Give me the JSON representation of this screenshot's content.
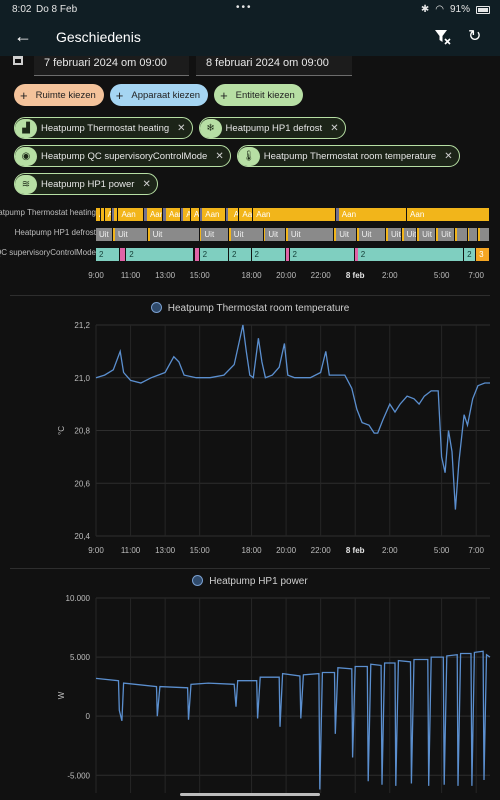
{
  "statusbar": {
    "time": "8:02",
    "date": "Do 8 Feb",
    "dots": "•••",
    "battery": "91%"
  },
  "appbar": {
    "title": "Geschiedenis"
  },
  "dates": {
    "start": "7 februari 2024 om 09:00",
    "end": "8 februari 2024 om 09:00"
  },
  "pickers": {
    "area": "Ruimte kiezen",
    "device": "Apparaat kiezen",
    "entity": "Entiteit kiezen"
  },
  "selected": [
    {
      "label": "Heatpump Thermostat heating",
      "icon": "thermostat-icon"
    },
    {
      "label": "Heatpump HP1 defrost",
      "icon": "snowflake-icon"
    },
    {
      "label": "Heatpump QC supervisoryControlMode",
      "icon": "eye-icon"
    },
    {
      "label": "Heatpump Thermostat room temperature",
      "icon": "thermometer-icon"
    },
    {
      "label": "Heatpump HP1 power",
      "icon": "heat-wave-icon"
    }
  ],
  "colors": {
    "aan": "#f2b51a",
    "uit": "#8a8a8a",
    "mode2": "#7fcfc0",
    "mode3": "#f5a623",
    "pink": "#e063a6",
    "line": "#5b8fcf",
    "gap": "#6f6f8f"
  },
  "timeline": {
    "rows": [
      {
        "label": "Heatpump Thermostat heating",
        "segments": [
          {
            "s": 0.0,
            "e": 0.28,
            "c": "aan",
            "t": "Aan"
          },
          {
            "s": 0.28,
            "e": 0.5,
            "c": "aan",
            "t": "Aan"
          },
          {
            "s": 0.5,
            "e": 0.9,
            "c": "aan",
            "t": "Aan"
          },
          {
            "s": 0.9,
            "e": 1.05,
            "c": "gap",
            "t": ""
          },
          {
            "s": 1.05,
            "e": 1.3,
            "c": "aan",
            "t": "Aan"
          },
          {
            "s": 1.3,
            "e": 2.8,
            "c": "aan",
            "t": "Aan"
          },
          {
            "s": 2.8,
            "e": 2.95,
            "c": "gap",
            "t": ""
          },
          {
            "s": 2.95,
            "e": 3.9,
            "c": "aan",
            "t": "Aan"
          },
          {
            "s": 3.9,
            "e": 4.05,
            "c": "gap",
            "t": ""
          },
          {
            "s": 4.05,
            "e": 4.9,
            "c": "aan",
            "t": "Aan"
          },
          {
            "s": 4.9,
            "e": 5.05,
            "c": "gap",
            "t": ""
          },
          {
            "s": 5.05,
            "e": 5.5,
            "c": "aan",
            "t": "Aan"
          },
          {
            "s": 5.5,
            "e": 6.0,
            "c": "aan",
            "t": "Aan"
          },
          {
            "s": 6.0,
            "e": 6.15,
            "c": "gap",
            "t": ""
          },
          {
            "s": 6.15,
            "e": 7.5,
            "c": "aan",
            "t": "Aan"
          },
          {
            "s": 7.5,
            "e": 7.65,
            "c": "gap",
            "t": ""
          },
          {
            "s": 7.65,
            "e": 7.8,
            "c": "aan",
            "t": "Aan"
          },
          {
            "s": 7.8,
            "e": 8.3,
            "c": "aan",
            "t": "Aan"
          },
          {
            "s": 8.3,
            "e": 9.1,
            "c": "aan",
            "t": "Aan"
          },
          {
            "s": 9.1,
            "e": 13.9,
            "c": "aan",
            "t": "Aan"
          },
          {
            "s": 13.9,
            "e": 14.05,
            "c": "gap",
            "t": ""
          },
          {
            "s": 14.05,
            "e": 18.0,
            "c": "aan",
            "t": "Aan"
          },
          {
            "s": 18.0,
            "e": 22.8,
            "c": "aan",
            "t": "Aan"
          }
        ]
      },
      {
        "label": "Heatpump HP1 defrost",
        "segments": [
          {
            "s": 0.0,
            "e": 1.0,
            "c": "uit",
            "t": "Uit"
          },
          {
            "s": 1.0,
            "e": 1.1,
            "c": "aan",
            "t": ""
          },
          {
            "s": 1.1,
            "e": 3.0,
            "c": "uit",
            "t": "Uit"
          },
          {
            "s": 3.0,
            "e": 3.1,
            "c": "aan",
            "t": ""
          },
          {
            "s": 3.1,
            "e": 6.0,
            "c": "uit",
            "t": "Uit"
          },
          {
            "s": 6.0,
            "e": 6.1,
            "c": "aan",
            "t": ""
          },
          {
            "s": 6.1,
            "e": 7.7,
            "c": "uit",
            "t": "Uit"
          },
          {
            "s": 7.7,
            "e": 7.8,
            "c": "aan",
            "t": ""
          },
          {
            "s": 7.8,
            "e": 9.7,
            "c": "uit",
            "t": "Uit"
          },
          {
            "s": 9.7,
            "e": 9.8,
            "c": "aan",
            "t": ""
          },
          {
            "s": 9.8,
            "e": 11.0,
            "c": "uit",
            "t": "Uit"
          },
          {
            "s": 11.0,
            "e": 11.1,
            "c": "aan",
            "t": ""
          },
          {
            "s": 11.1,
            "e": 13.8,
            "c": "uit",
            "t": "Uit"
          },
          {
            "s": 13.8,
            "e": 13.9,
            "c": "aan",
            "t": ""
          },
          {
            "s": 13.9,
            "e": 15.1,
            "c": "uit",
            "t": "Uit"
          },
          {
            "s": 15.1,
            "e": 15.2,
            "c": "aan",
            "t": ""
          },
          {
            "s": 15.2,
            "e": 16.8,
            "c": "uit",
            "t": "Uit"
          },
          {
            "s": 16.8,
            "e": 16.9,
            "c": "aan",
            "t": ""
          },
          {
            "s": 16.9,
            "e": 17.7,
            "c": "uit",
            "t": "Uit"
          },
          {
            "s": 17.7,
            "e": 17.8,
            "c": "aan",
            "t": ""
          },
          {
            "s": 17.8,
            "e": 18.6,
            "c": "uit",
            "t": "Uit"
          },
          {
            "s": 18.6,
            "e": 18.7,
            "c": "aan",
            "t": ""
          },
          {
            "s": 18.7,
            "e": 19.7,
            "c": "uit",
            "t": "Uit"
          },
          {
            "s": 19.7,
            "e": 19.8,
            "c": "aan",
            "t": ""
          },
          {
            "s": 19.8,
            "e": 20.8,
            "c": "uit",
            "t": "Uit"
          },
          {
            "s": 20.8,
            "e": 20.9,
            "c": "aan",
            "t": ""
          },
          {
            "s": 20.9,
            "e": 21.5,
            "c": "uit",
            "t": ""
          },
          {
            "s": 21.5,
            "e": 21.6,
            "c": "aan",
            "t": ""
          },
          {
            "s": 21.6,
            "e": 22.1,
            "c": "uit",
            "t": ""
          },
          {
            "s": 22.1,
            "e": 22.2,
            "c": "aan",
            "t": ""
          },
          {
            "s": 22.2,
            "e": 22.8,
            "c": "uit",
            "t": ""
          }
        ]
      },
      {
        "label": "Heatpump QC supervisoryControlMode",
        "segments": [
          {
            "s": 0.0,
            "e": 1.4,
            "c": "mode2",
            "t": "2"
          },
          {
            "s": 1.4,
            "e": 1.75,
            "c": "pink",
            "t": ""
          },
          {
            "s": 1.75,
            "e": 5.7,
            "c": "mode2",
            "t": "2"
          },
          {
            "s": 5.7,
            "e": 6.0,
            "c": "pink",
            "t": ""
          },
          {
            "s": 6.0,
            "e": 7.7,
            "c": "mode2",
            "t": "2"
          },
          {
            "s": 7.7,
            "e": 9.0,
            "c": "mode2",
            "t": "2"
          },
          {
            "s": 9.0,
            "e": 11.0,
            "c": "mode2",
            "t": "2"
          },
          {
            "s": 11.0,
            "e": 11.2,
            "c": "pink",
            "t": ""
          },
          {
            "s": 11.2,
            "e": 15.0,
            "c": "mode2",
            "t": "2"
          },
          {
            "s": 15.0,
            "e": 15.15,
            "c": "pink",
            "t": ""
          },
          {
            "s": 15.15,
            "e": 21.3,
            "c": "mode2",
            "t": "2"
          },
          {
            "s": 21.3,
            "e": 22.0,
            "c": "mode2",
            "t": "2"
          },
          {
            "s": 22.0,
            "e": 22.8,
            "c": "mode3",
            "t": "3"
          }
        ]
      }
    ]
  },
  "time_axis": {
    "ticks": [
      {
        "h": 0,
        "t": "9:00"
      },
      {
        "h": 2,
        "t": "11:00"
      },
      {
        "h": 4,
        "t": "13:00"
      },
      {
        "h": 6,
        "t": "15:00"
      },
      {
        "h": 9,
        "t": "18:00"
      },
      {
        "h": 11,
        "t": "20:00"
      },
      {
        "h": 13,
        "t": "22:00"
      },
      {
        "h": 15,
        "t": "8 feb",
        "bold": true
      },
      {
        "h": 17,
        "t": "2:00"
      },
      {
        "h": 20,
        "t": "5:00"
      },
      {
        "h": 22,
        "t": "7:00"
      }
    ],
    "range_hours": 22.8
  },
  "chart_data": [
    {
      "type": "line",
      "title": "Heatpump Thermostat room temperature",
      "ylabel": "°C",
      "ylim": [
        20.4,
        21.2
      ],
      "yticks": [
        "21,2",
        "21,0",
        "20,8",
        "20,6",
        "20,4"
      ],
      "x_unit": "hours since 9:00",
      "points": [
        [
          0,
          21.0
        ],
        [
          0.5,
          21.01
        ],
        [
          1.0,
          21.03
        ],
        [
          1.4,
          21.1
        ],
        [
          1.6,
          21.02
        ],
        [
          2.0,
          20.99
        ],
        [
          2.6,
          20.98
        ],
        [
          3.2,
          21.0
        ],
        [
          3.6,
          21.01
        ],
        [
          4.0,
          21.02
        ],
        [
          4.5,
          21.08
        ],
        [
          4.8,
          21.06
        ],
        [
          5.1,
          21.01
        ],
        [
          5.8,
          21.0
        ],
        [
          6.6,
          21.0
        ],
        [
          7.4,
          21.01
        ],
        [
          8.0,
          21.05
        ],
        [
          8.5,
          21.2
        ],
        [
          8.7,
          21.1
        ],
        [
          8.9,
          21.01
        ],
        [
          9.1,
          21.0
        ],
        [
          9.4,
          21.15
        ],
        [
          9.6,
          21.06
        ],
        [
          9.8,
          21.0
        ],
        [
          10.2,
          21.01
        ],
        [
          10.6,
          21.04
        ],
        [
          10.9,
          21.13
        ],
        [
          11.1,
          21.01
        ],
        [
          11.5,
          21.0
        ],
        [
          12.4,
          21.0
        ],
        [
          13.0,
          21.02
        ],
        [
          13.3,
          21.1
        ],
        [
          13.5,
          21.01
        ],
        [
          14.4,
          21.01
        ],
        [
          14.8,
          20.96
        ],
        [
          15.1,
          20.88
        ],
        [
          15.4,
          20.83
        ],
        [
          15.8,
          20.82
        ],
        [
          16.1,
          20.79
        ],
        [
          16.3,
          20.79
        ],
        [
          16.6,
          20.84
        ],
        [
          17.0,
          20.9
        ],
        [
          17.3,
          20.87
        ],
        [
          17.6,
          20.9
        ],
        [
          18.0,
          20.93
        ],
        [
          18.4,
          20.92
        ],
        [
          18.7,
          20.9
        ],
        [
          19.0,
          20.93
        ],
        [
          19.4,
          20.95
        ],
        [
          19.8,
          20.95
        ],
        [
          20.0,
          20.7
        ],
        [
          20.2,
          20.64
        ],
        [
          20.4,
          20.8
        ],
        [
          20.6,
          20.72
        ],
        [
          20.8,
          20.5
        ],
        [
          21.0,
          20.68
        ],
        [
          21.3,
          20.86
        ],
        [
          21.5,
          20.82
        ],
        [
          21.8,
          20.92
        ],
        [
          22.1,
          20.97
        ],
        [
          22.5,
          20.98
        ],
        [
          22.8,
          20.98
        ]
      ]
    },
    {
      "type": "line",
      "title": "Heatpump HP1 power",
      "ylabel": "W",
      "ylim": [
        -6500,
        10000
      ],
      "yticks": [
        "10.000",
        "5.000",
        "0",
        "-5.000"
      ],
      "x_unit": "hours since 9:00",
      "points": [
        [
          0,
          3200
        ],
        [
          1.3,
          3000
        ],
        [
          1.35,
          500
        ],
        [
          1.5,
          -400
        ],
        [
          1.6,
          2800
        ],
        [
          3.5,
          2500
        ],
        [
          3.55,
          0
        ],
        [
          3.7,
          2500
        ],
        [
          5.3,
          2400
        ],
        [
          5.35,
          -300
        ],
        [
          5.5,
          2700
        ],
        [
          6.5,
          2800
        ],
        [
          8.0,
          2700
        ],
        [
          8.1,
          800
        ],
        [
          8.2,
          3000
        ],
        [
          9.3,
          3000
        ],
        [
          9.35,
          -200
        ],
        [
          9.5,
          3300
        ],
        [
          10.6,
          3300
        ],
        [
          10.65,
          -900
        ],
        [
          10.8,
          3600
        ],
        [
          11.8,
          3400
        ],
        [
          11.85,
          -200
        ],
        [
          12.0,
          3500
        ],
        [
          12.9,
          3600
        ],
        [
          12.95,
          -6200
        ],
        [
          13.1,
          3700
        ],
        [
          13.8,
          3700
        ],
        [
          13.85,
          -1500
        ],
        [
          14.0,
          4100
        ],
        [
          14.8,
          4000
        ],
        [
          14.85,
          -3500
        ],
        [
          15.0,
          4200
        ],
        [
          15.7,
          4200
        ],
        [
          15.75,
          -5500
        ],
        [
          15.9,
          4400
        ],
        [
          16.5,
          4300
        ],
        [
          16.55,
          -5800
        ],
        [
          16.7,
          4500
        ],
        [
          17.3,
          4500
        ],
        [
          17.35,
          -5900
        ],
        [
          17.5,
          4700
        ],
        [
          18.2,
          4600
        ],
        [
          18.25,
          -5700
        ],
        [
          18.4,
          4800
        ],
        [
          19.2,
          4800
        ],
        [
          19.25,
          -5900
        ],
        [
          19.4,
          5000
        ],
        [
          20.1,
          5000
        ],
        [
          20.15,
          -5800
        ],
        [
          20.3,
          5100
        ],
        [
          20.9,
          5200
        ],
        [
          20.95,
          -5900
        ],
        [
          21.1,
          5300
        ],
        [
          21.7,
          5300
        ],
        [
          21.75,
          -5900
        ],
        [
          21.9,
          5400
        ],
        [
          22.4,
          5500
        ],
        [
          22.45,
          -5400
        ],
        [
          22.6,
          5200
        ],
        [
          22.8,
          5000
        ]
      ]
    }
  ]
}
